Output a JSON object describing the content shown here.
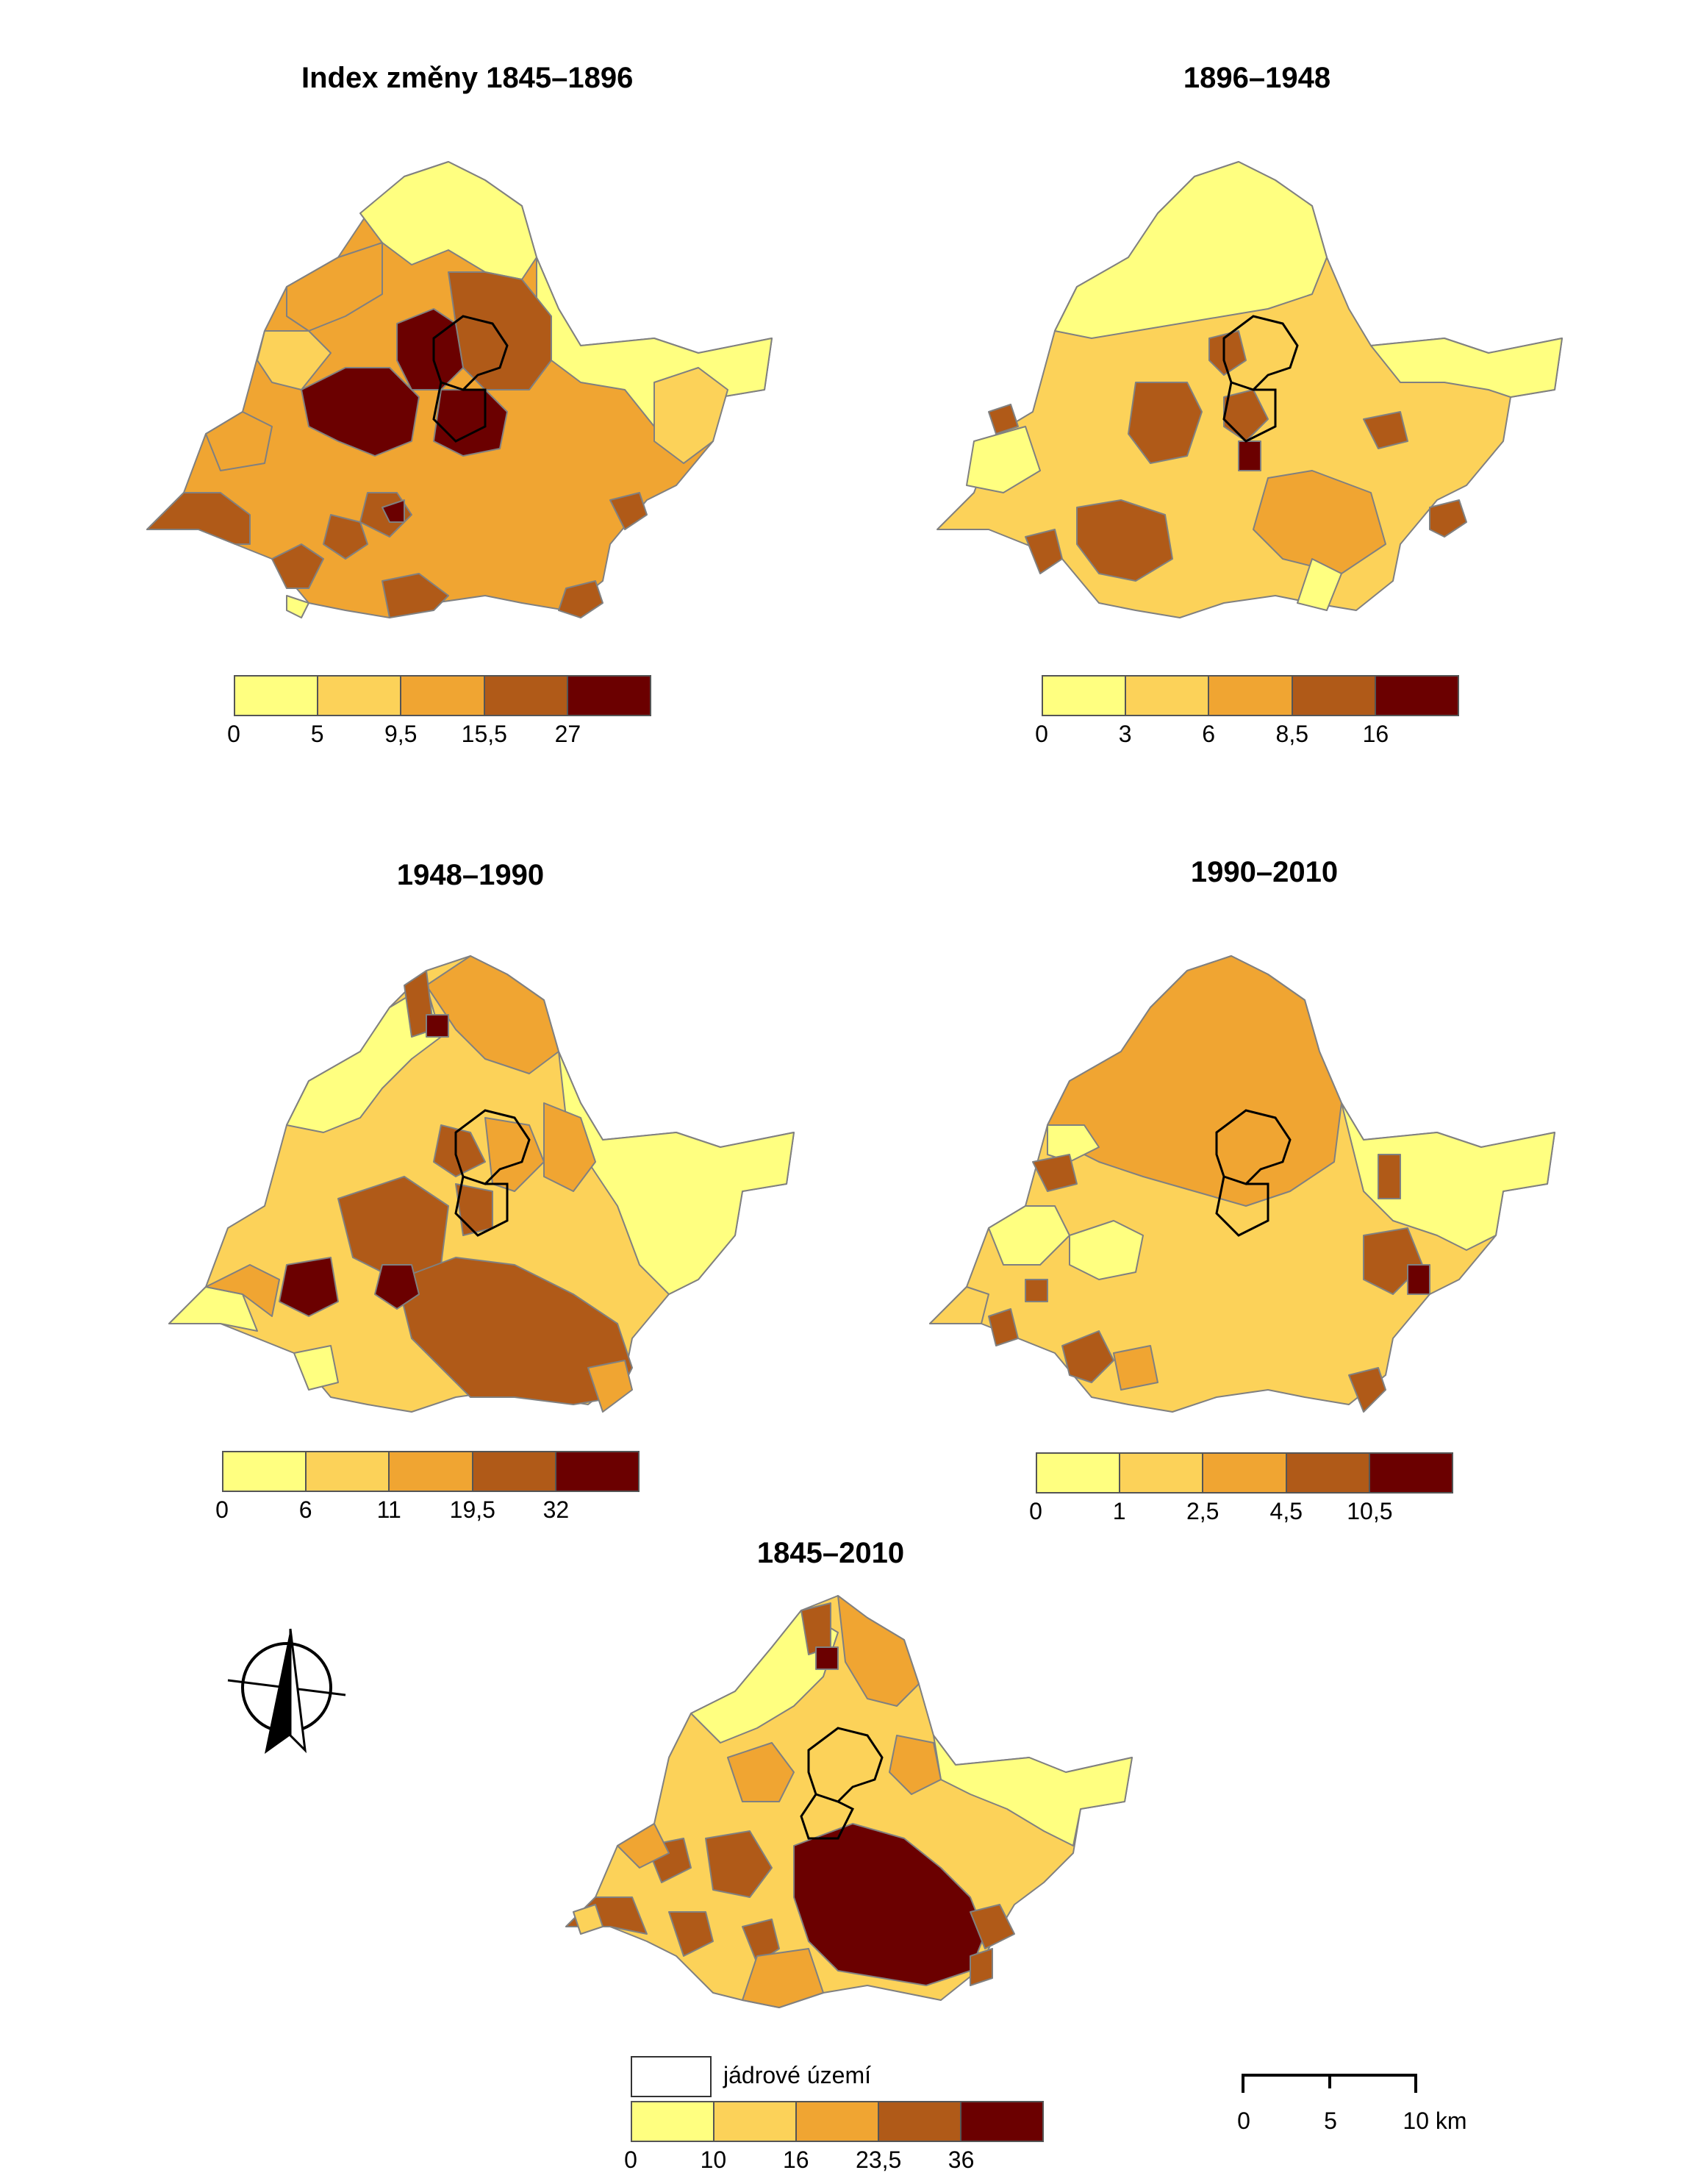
{
  "colors": {
    "c1": "#ffff80",
    "c2": "#fcd259",
    "c3": "#f0a532",
    "c4": "#b05a18",
    "c5": "#6b0000",
    "border": "#808080",
    "core": "#000000"
  },
  "maps": [
    {
      "title": "Index změny 1845–1896",
      "breaks": [
        "0",
        "5",
        "9,5",
        "15,5",
        "27"
      ]
    },
    {
      "title": "1896–1948",
      "breaks": [
        "0",
        "3",
        "6",
        "8,5",
        "16"
      ]
    },
    {
      "title": "1948–1990",
      "breaks": [
        "0",
        "6",
        "11",
        "19,5",
        "32"
      ]
    },
    {
      "title": "1990–2010",
      "breaks": [
        "0",
        "1",
        "2,5",
        "4,5",
        "10,5"
      ]
    },
    {
      "title": "1845–2010",
      "breaks": [
        "0",
        "10",
        "16",
        "23,5",
        "36"
      ]
    }
  ],
  "core_legend": {
    "label": "jádrové území"
  },
  "scale": {
    "labels": [
      "0",
      "5",
      "10 km"
    ]
  },
  "north_arrow": {
    "icon": "north-arrow-icon"
  }
}
